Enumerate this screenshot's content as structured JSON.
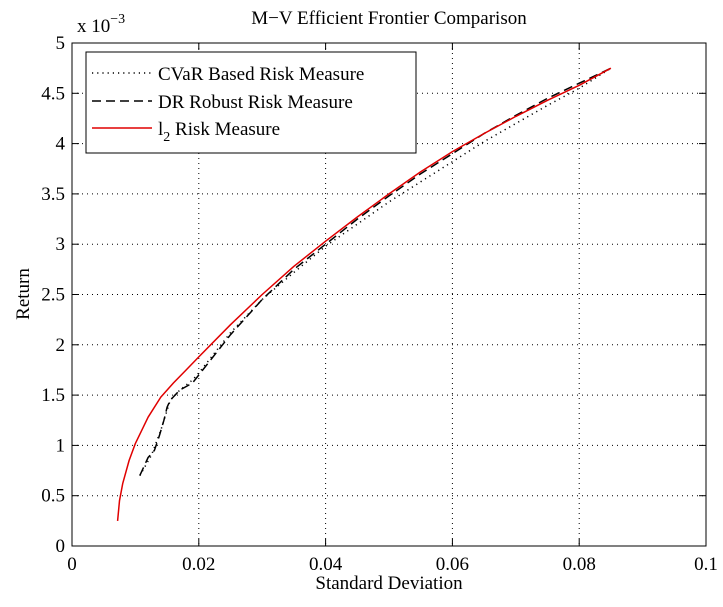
{
  "chart_data": {
    "type": "line",
    "title": "M−V Efficient Frontier Comparison",
    "xlabel": "Standard Deviation",
    "ylabel": "Return",
    "y_multiplier_base": "x 10",
    "y_multiplier_exp": "−3",
    "xlim": [
      0,
      0.1
    ],
    "ylim": [
      0,
      5
    ],
    "x_ticks": [
      0,
      0.02,
      0.04,
      0.06,
      0.08,
      0.1
    ],
    "x_tick_labels": [
      "0",
      "0.02",
      "0.04",
      "0.06",
      "0.08",
      "0.1"
    ],
    "y_ticks": [
      0,
      0.5,
      1,
      1.5,
      2,
      2.5,
      3,
      3.5,
      4,
      4.5,
      5
    ],
    "y_tick_labels": [
      "0",
      "0.5",
      "1",
      "1.5",
      "2",
      "2.5",
      "3",
      "3.5",
      "4",
      "4.5",
      "5"
    ],
    "grid": true,
    "legend_position": "top-left",
    "series": [
      {
        "name": "CVaR Based Risk Measure",
        "style": "dotted",
        "color": "#000000",
        "x": [
          0.0107,
          0.0125,
          0.014,
          0.0155,
          0.017,
          0.019,
          0.02,
          0.025,
          0.03,
          0.035,
          0.04,
          0.045,
          0.05,
          0.055,
          0.06,
          0.065,
          0.07,
          0.075,
          0.08,
          0.085
        ],
        "y": [
          0.7,
          0.9,
          1.15,
          1.45,
          1.55,
          1.65,
          1.72,
          2.12,
          2.45,
          2.72,
          2.98,
          3.2,
          3.42,
          3.62,
          3.82,
          4.02,
          4.2,
          4.38,
          4.55,
          4.75
        ]
      },
      {
        "name": "DR Robust Risk Measure",
        "style": "dashed",
        "color": "#000000",
        "x": [
          0.0107,
          0.012,
          0.013,
          0.0138,
          0.0145,
          0.015,
          0.0155,
          0.017,
          0.019,
          0.02,
          0.025,
          0.03,
          0.035,
          0.04,
          0.045,
          0.05,
          0.055,
          0.06,
          0.065,
          0.07,
          0.075,
          0.08,
          0.085
        ],
        "y": [
          0.7,
          0.88,
          0.95,
          1.1,
          1.25,
          1.38,
          1.45,
          1.55,
          1.62,
          1.7,
          2.1,
          2.45,
          2.75,
          3.0,
          3.25,
          3.48,
          3.7,
          3.9,
          4.1,
          4.28,
          4.45,
          4.6,
          4.75
        ]
      },
      {
        "name": "l",
        "name_subscript": "2",
        "name_suffix": " Risk Measure",
        "style": "solid",
        "color": "#e00000",
        "x": [
          0.0072,
          0.0075,
          0.008,
          0.009,
          0.01,
          0.012,
          0.014,
          0.016,
          0.018,
          0.02,
          0.025,
          0.03,
          0.035,
          0.04,
          0.045,
          0.05,
          0.055,
          0.06,
          0.065,
          0.07,
          0.075,
          0.08,
          0.085
        ],
        "y": [
          0.25,
          0.45,
          0.62,
          0.85,
          1.02,
          1.28,
          1.48,
          1.62,
          1.75,
          1.88,
          2.2,
          2.5,
          2.78,
          3.03,
          3.27,
          3.5,
          3.72,
          3.92,
          4.1,
          4.27,
          4.43,
          4.58,
          4.75
        ]
      }
    ]
  }
}
